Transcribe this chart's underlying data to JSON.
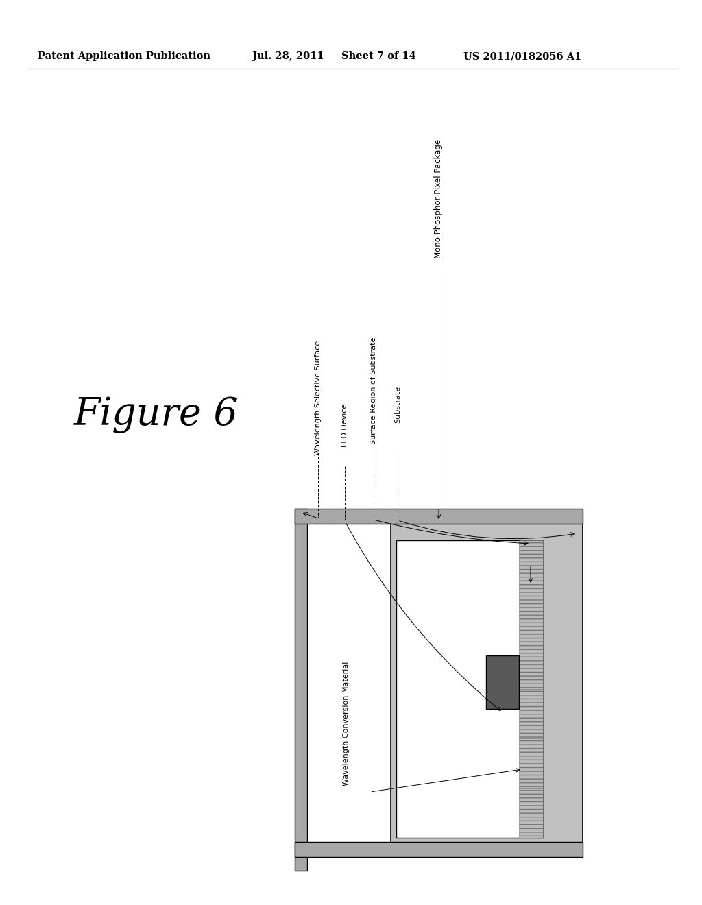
{
  "bg_color": "#ffffff",
  "header_text": "Patent Application Publication",
  "header_date": "Jul. 28, 2011",
  "header_sheet": "Sheet 7 of 14",
  "header_patent": "US 2011/0182056 A1",
  "figure_label": "Figure 6",
  "mono_phosphor_label": "Mono Phosphor Pixel Package",
  "label_ws": "Wavelength Selective Surface",
  "label_led": "LED Device",
  "label_sr": "Surface Region of Substrate",
  "label_sub": "Substrate",
  "label_wcm": "Wavelength Conversion Material",
  "colors": {
    "gray_light": "#c0c0c0",
    "gray_medium": "#a8a8a8",
    "white": "#ffffff",
    "black": "#000000",
    "led_dark": "#585858",
    "hatch_gray": "#b8b8b8"
  }
}
